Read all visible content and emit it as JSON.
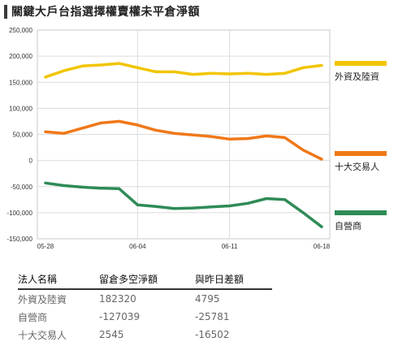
{
  "title": "關鍵大戶台指選擇權賣權未平倉淨額",
  "chart_data": {
    "type": "line",
    "x": [
      "05-28",
      "05-29",
      "05-30",
      "05-31",
      "06-01",
      "06-04",
      "06-05",
      "06-06",
      "06-07",
      "06-08",
      "06-11",
      "06-12",
      "06-13",
      "06-14",
      "06-15",
      "06-18"
    ],
    "x_tick_labels": [
      "05-28",
      "06-04",
      "06-11",
      "06-18"
    ],
    "y_tick_labels": [
      "250,000",
      "200,000",
      "150,000",
      "100,000",
      "50,000",
      "0",
      "-50,000",
      "-100,000",
      "-150,000"
    ],
    "ylim": [
      -150000,
      250000
    ],
    "series": [
      {
        "name": "外資及陸資",
        "color": "#f2c500",
        "values": [
          160000,
          172000,
          181000,
          183000,
          186000,
          178000,
          170000,
          170000,
          165000,
          167000,
          166000,
          167000,
          165000,
          167000,
          178000,
          182320
        ]
      },
      {
        "name": "十大交易人",
        "color": "#f07818",
        "values": [
          55000,
          52000,
          62000,
          72000,
          75000,
          68000,
          58000,
          52000,
          49000,
          46000,
          41000,
          42000,
          47000,
          44000,
          20000,
          2545
        ]
      },
      {
        "name": "自營商",
        "color": "#2e8b57",
        "values": [
          -43000,
          -48000,
          -51000,
          -53000,
          -54000,
          -85000,
          -88000,
          -92000,
          -91000,
          -89000,
          -87000,
          -82000,
          -73000,
          -75000,
          -100000,
          -127039
        ]
      }
    ]
  },
  "table": {
    "headers": [
      "法人名稱",
      "留倉多空淨額",
      "與昨日差額"
    ],
    "rows": [
      [
        "外資及陸資",
        "182320",
        "4795"
      ],
      [
        "自營商",
        "-127039",
        "-25781"
      ],
      [
        "十大交易人",
        "2545",
        "-16502"
      ]
    ]
  }
}
